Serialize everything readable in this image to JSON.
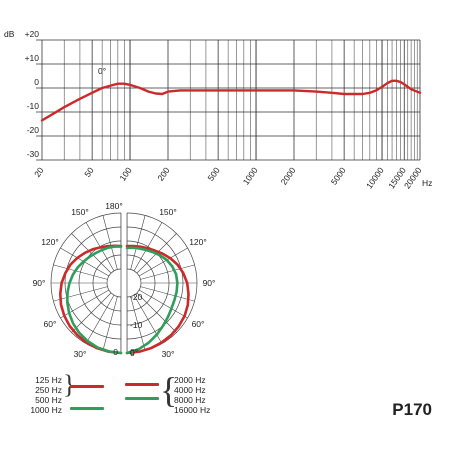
{
  "chart_data": [
    {
      "type": "line",
      "ylabel": "dB",
      "xlabel": "Hz",
      "xscale": "log",
      "xlim": [
        20,
        20000
      ],
      "ylim": [
        -30,
        20
      ],
      "y_ticks": [
        "+20",
        "+10",
        "0",
        "-10",
        "-20",
        "-30"
      ],
      "x_ticks": [
        "20",
        "50",
        "100",
        "200",
        "500",
        "1000",
        "2000",
        "5000",
        "10000",
        "15000",
        "20000"
      ],
      "angle_label": "0°",
      "grid": true,
      "series": [
        {
          "color": "#cc2a2a",
          "x": [
            20,
            25,
            30,
            40,
            50,
            60,
            70,
            80,
            90,
            100,
            120,
            140,
            160,
            180,
            200,
            250,
            300,
            500,
            1000,
            2000,
            3000,
            4000,
            5000,
            6000,
            7000,
            8000,
            9000,
            10000,
            11000,
            12000,
            13000,
            14000,
            15000,
            17000,
            20000
          ],
          "y": [
            -13.5,
            -10.5,
            -8,
            -4.5,
            -2,
            0,
            1,
            1.8,
            1.8,
            1.3,
            0,
            -1.5,
            -2.3,
            -2.5,
            -1.5,
            -1,
            -1,
            -1,
            -1,
            -1,
            -1.5,
            -2,
            -2.5,
            -2.5,
            -2.5,
            -2,
            -1,
            0.5,
            2,
            3,
            3,
            2.5,
            1.5,
            -0.5,
            -2
          ]
        }
      ]
    },
    {
      "type": "polar",
      "angle_labels": [
        "180°",
        "150°",
        "120°",
        "90°",
        "60°",
        "30°",
        "0",
        "150°",
        "120°",
        "90°",
        "60°",
        "30°",
        "0°"
      ],
      "radial_labels": [
        "-20",
        "-10",
        "0"
      ],
      "rlim": [
        -25,
        0
      ],
      "series": [
        {
          "name": "125 Hz",
          "side": "left",
          "color": "#cc2a2a",
          "angles": [
            0,
            10,
            20,
            30,
            40,
            50,
            60,
            70,
            80,
            90,
            100,
            110,
            120,
            130,
            140,
            150,
            160,
            170,
            180
          ],
          "values": [
            0,
            -0.1,
            -0.2,
            -0.4,
            -0.7,
            -1.1,
            -1.6,
            -2.2,
            -3,
            -3.8,
            -4.8,
            -5.8,
            -7,
            -8.2,
            -9.3,
            -10.3,
            -11,
            -11.5,
            -11.8
          ]
        },
        {
          "name": "1000 Hz",
          "side": "left",
          "color": "#2e9e5a",
          "angles": [
            0,
            10,
            20,
            30,
            40,
            50,
            60,
            70,
            80,
            90,
            100,
            110,
            120,
            130,
            140,
            150,
            160,
            170,
            180
          ],
          "values": [
            0,
            -0.2,
            -0.5,
            -1.1,
            -1.8,
            -2.6,
            -3.6,
            -4.6,
            -5.6,
            -6.6,
            -7.6,
            -8.6,
            -9.6,
            -10.4,
            -11,
            -11.4,
            -11.6,
            -11.8,
            -12
          ]
        },
        {
          "name": "4000 Hz",
          "side": "right",
          "color": "#cc2a2a",
          "angles": [
            0,
            10,
            20,
            30,
            40,
            50,
            60,
            70,
            80,
            90,
            100,
            110,
            120,
            130,
            140,
            150,
            160,
            170,
            180
          ],
          "values": [
            0,
            -0.1,
            -0.2,
            -0.4,
            -0.6,
            -0.9,
            -1.3,
            -1.9,
            -2.7,
            -3.5,
            -4.6,
            -5.8,
            -7.2,
            -8.6,
            -9.8,
            -10.6,
            -11.2,
            -11.6,
            -11.8
          ]
        },
        {
          "name": "16000 Hz",
          "side": "right",
          "color": "#2e9e5a",
          "angles": [
            0,
            10,
            20,
            30,
            40,
            50,
            60,
            70,
            80,
            90,
            100,
            110,
            120,
            130,
            140,
            150,
            160,
            170,
            180
          ],
          "values": [
            0,
            -1,
            -2.3,
            -3.7,
            -5,
            -6,
            -6.7,
            -7,
            -7,
            -7,
            -7.2,
            -7.8,
            -8.6,
            -9.6,
            -10.6,
            -11.4,
            -11.9,
            -12.2,
            -12.5
          ]
        }
      ]
    }
  ],
  "legend": {
    "left_labels": [
      "125 Hz",
      "250 Hz",
      "500 Hz",
      "1000 Hz"
    ],
    "right_labels": [
      "2000 Hz",
      "4000 Hz",
      "8000 Hz",
      "16000 Hz"
    ],
    "colors": {
      "red": "#cc2a2a",
      "green": "#2e9e5a"
    }
  },
  "model": "P170"
}
